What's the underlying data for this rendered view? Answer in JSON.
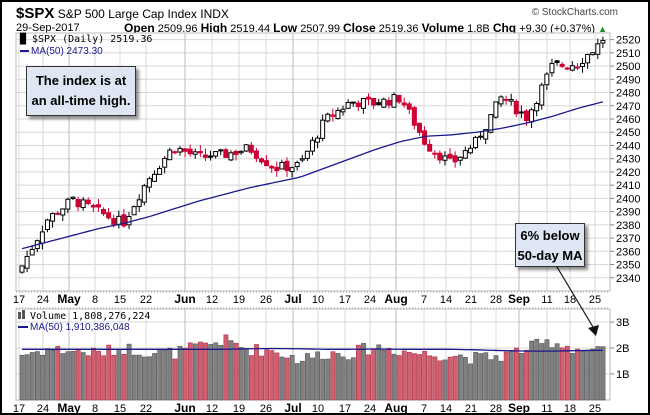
{
  "header": {
    "symbol": "$SPX",
    "name": "S&P 500 Large Cap Index",
    "exchange": "INDX",
    "date": "29-Sep-2017",
    "open_label": "Open",
    "open": "2509.96",
    "high_label": "High",
    "high": "2519.44",
    "low_label": "Low",
    "low": "2507.99",
    "close_label": "Close",
    "close": "2519.36",
    "volume_label": "Volume",
    "volume": "1.8B",
    "chg_label": "Chg",
    "chg": "+9.30 (+0.37%)",
    "credit": "© StockCharts.com"
  },
  "price_panel": {
    "legend_price": "$SPX (Daily) 2519.36",
    "legend_ma": "MA(50) 2473.30",
    "y_ticks": [
      2340,
      2350,
      2360,
      2370,
      2380,
      2390,
      2400,
      2410,
      2420,
      2430,
      2440,
      2450,
      2460,
      2470,
      2480,
      2490,
      2500,
      2510,
      2520
    ],
    "annotation_1": [
      "The index is at",
      "an all-time high."
    ],
    "annotation_2": [
      "6% below",
      "50-day MA"
    ]
  },
  "volume_panel": {
    "legend_volume": "Volume 1,808,276,224",
    "legend_ma": "MA(50) 1,910,386,048",
    "y_ticks": [
      "1B",
      "2B",
      "3B"
    ]
  },
  "x_labels": [
    {
      "t": "17",
      "b": false
    },
    {
      "t": "24",
      "b": false
    },
    {
      "t": "May",
      "b": true
    },
    {
      "t": "8",
      "b": false
    },
    {
      "t": "15",
      "b": false
    },
    {
      "t": "22",
      "b": false
    },
    {
      "t": "Jun",
      "b": true
    },
    {
      "t": "12",
      "b": false
    },
    {
      "t": "19",
      "b": false
    },
    {
      "t": "26",
      "b": false
    },
    {
      "t": "Jul",
      "b": true
    },
    {
      "t": "10",
      "b": false
    },
    {
      "t": "17",
      "b": false
    },
    {
      "t": "24",
      "b": false
    },
    {
      "t": "Aug",
      "b": true
    },
    {
      "t": "7",
      "b": false
    },
    {
      "t": "14",
      "b": false
    },
    {
      "t": "21",
      "b": false
    },
    {
      "t": "28",
      "b": false
    },
    {
      "t": "Sep",
      "b": true
    },
    {
      "t": "11",
      "b": false
    },
    {
      "t": "18",
      "b": false
    },
    {
      "t": "25",
      "b": false
    }
  ],
  "colors": {
    "up": "#000000",
    "down": "#cc0033",
    "ma": "#1a1a8c",
    "vol_up": "#808080",
    "vol_down": "#d06070",
    "grid": "#d8d8d8"
  },
  "chart_data": {
    "type": "candlestick+volume",
    "title": "$SPX S&P 500 Large Cap Index INDX",
    "xlabel": "",
    "ylabel": "",
    "ylim": [
      2330,
      2525
    ],
    "x": [
      "Apr 17",
      "Apr 24",
      "May 1",
      "May 8",
      "May 15",
      "May 22",
      "May 29",
      "Jun 5",
      "Jun 12",
      "Jun 19",
      "Jun 26",
      "Jul 3",
      "Jul 10",
      "Jul 17",
      "Jul 24",
      "Jul 31",
      "Aug 7",
      "Aug 14",
      "Aug 21",
      "Aug 28",
      "Sep 4",
      "Sep 11",
      "Sep 18",
      "Sep 25"
    ],
    "series": [
      {
        "name": "$SPX close (approx weekly)",
        "values": [
          2349,
          2384,
          2399,
          2390,
          2381,
          2415,
          2439,
          2431,
          2433,
          2438,
          2423,
          2425,
          2459,
          2473,
          2472,
          2476,
          2441,
          2426,
          2443,
          2477,
          2461,
          2500,
          2502,
          2519
        ]
      },
      {
        "name": "MA(50)",
        "values": [
          2362,
          2367,
          2372,
          2377,
          2381,
          2386,
          2392,
          2398,
          2403,
          2408,
          2412,
          2416,
          2423,
          2430,
          2437,
          2443,
          2447,
          2448,
          2450,
          2453,
          2457,
          2462,
          2468,
          2473
        ]
      },
      {
        "name": "Volume (B, approx weekly)",
        "values": [
          1.75,
          1.95,
          1.9,
          1.8,
          2.0,
          1.85,
          1.8,
          2.05,
          2.3,
          1.95,
          1.9,
          1.55,
          1.8,
          1.8,
          2.05,
          1.9,
          1.75,
          1.75,
          1.6,
          1.7,
          2.0,
          2.25,
          1.95,
          1.85
        ]
      },
      {
        "name": "Volume MA(50) (B)",
        "values": [
          1.95,
          1.95,
          1.95,
          1.95,
          1.95,
          1.95,
          1.95,
          1.95,
          1.95,
          1.97,
          1.98,
          1.97,
          1.95,
          1.95,
          1.96,
          1.95,
          1.95,
          1.95,
          1.93,
          1.9,
          1.88,
          1.88,
          1.9,
          1.91
        ]
      }
    ],
    "annotations": [
      "The index is at an all-time high.",
      "6% below 50-day MA"
    ],
    "legend_position": "top-left",
    "grid": true
  }
}
